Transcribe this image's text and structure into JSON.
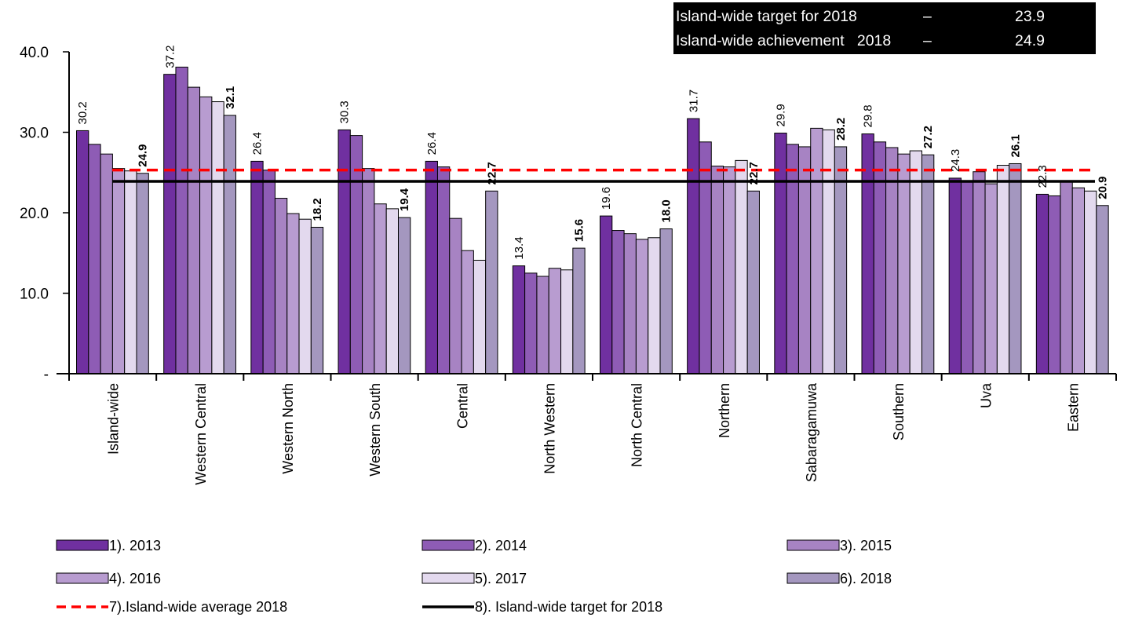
{
  "info_box": {
    "target_label": "Island-wide target for 2018",
    "target_dash": "–",
    "target_value": "23.9",
    "achievement_label": "Island-wide achievement   2018",
    "achievement_dash": "–",
    "achievement_value": "24.9"
  },
  "chart_data": {
    "type": "bar",
    "categories": [
      "Island-wide",
      "Western Central",
      "Western  North",
      "Western  South",
      "Central",
      "North Western",
      "North Central",
      "Northern",
      "Sabaragamuwa",
      "Southern",
      "Uva",
      "Eastern"
    ],
    "series": [
      {
        "name": "1). 2013",
        "color": "#7030a0",
        "values": [
          30.2,
          37.2,
          26.4,
          30.3,
          26.4,
          13.4,
          19.6,
          31.7,
          29.9,
          29.8,
          24.3,
          22.3
        ]
      },
      {
        "name": "2). 2014",
        "color": "#8e5cb5",
        "values": [
          28.5,
          38.1,
          25.3,
          29.6,
          25.7,
          12.5,
          17.8,
          28.8,
          28.5,
          28.8,
          23.8,
          22.1
        ]
      },
      {
        "name": "3). 2015",
        "color": "#a783c3",
        "values": [
          27.3,
          35.6,
          21.8,
          25.5,
          19.3,
          12.1,
          17.4,
          25.8,
          28.2,
          28.1,
          25.1,
          23.9
        ]
      },
      {
        "name": "4). 2016",
        "color": "#b89cd0",
        "values": [
          25.5,
          34.4,
          19.9,
          21.1,
          15.3,
          13.1,
          16.7,
          25.7,
          30.5,
          27.3,
          23.6,
          23.1
        ]
      },
      {
        "name": "5). 2017",
        "color": "#e3d9ee",
        "values": [
          25.2,
          33.8,
          19.2,
          20.5,
          14.1,
          12.9,
          16.9,
          26.5,
          30.3,
          27.7,
          25.9,
          22.7
        ]
      },
      {
        "name": "6). 2018",
        "color": "#a497bf",
        "values": [
          24.9,
          32.1,
          18.2,
          19.4,
          22.7,
          15.6,
          18.0,
          22.7,
          28.2,
          27.2,
          26.1,
          20.9
        ]
      }
    ],
    "data_labels": {
      "first": [
        "30.2",
        "37.2",
        "26.4",
        "30.3",
        "26.4",
        "13.4",
        "19.6",
        "31.7",
        "29.9",
        "29.8",
        "24.3",
        "22.3"
      ],
      "last": [
        "24.9",
        "32.1",
        "18.2",
        "19.4",
        "22.7",
        "15.6",
        "18.0",
        "22.7",
        "28.2",
        "27.2",
        "26.1",
        "20.9"
      ]
    },
    "lines": [
      {
        "name": "7).Island-wide average 2018",
        "value": 25.3,
        "color": "#ff0000",
        "style": "dashed"
      },
      {
        "name": "8). Island-wide target for 2018",
        "value": 23.9,
        "color": "#000000",
        "style": "solid"
      }
    ],
    "y_ticks": [
      {
        "value": 0,
        "label": "-"
      },
      {
        "value": 10,
        "label": "10.0"
      },
      {
        "value": 20,
        "label": "20.0"
      },
      {
        "value": 30,
        "label": "30.0"
      },
      {
        "value": 40,
        "label": "40.0"
      }
    ],
    "ylim": [
      0,
      40
    ],
    "grid": false,
    "legend_position": "bottom"
  }
}
